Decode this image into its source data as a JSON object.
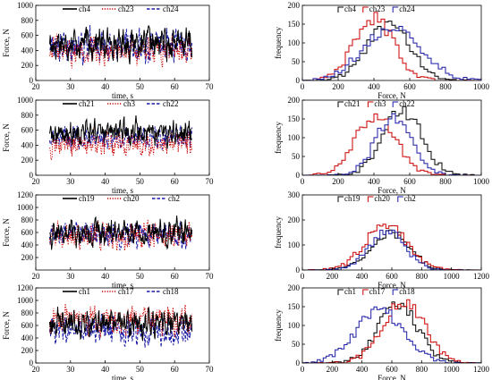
{
  "figure": {
    "colors": {
      "black": "#000000",
      "red": "#cc0000",
      "blue": "#1a1aa6"
    }
  },
  "chart_data": [
    {
      "id": "ts1",
      "type": "line",
      "panel": "time",
      "xlabel": "time, s",
      "ylabel": "Force, N",
      "xlim": [
        20,
        70
      ],
      "ylim": [
        0,
        1000
      ],
      "xticks": [
        "20",
        "30",
        "40",
        "50",
        "60",
        "70"
      ],
      "yticks": [
        "0",
        "200",
        "400",
        "600",
        "800",
        "1000"
      ],
      "x_range": [
        24,
        65
      ],
      "legend_position": "top",
      "series": [
        {
          "name": "ch4",
          "color": "black",
          "style": "solid",
          "mean": 500,
          "amp": 180
        },
        {
          "name": "ch23",
          "color": "red",
          "style": "dotted",
          "mean": 400,
          "amp": 170
        },
        {
          "name": "ch24",
          "color": "blue",
          "style": "dashed",
          "mean": 470,
          "amp": 200
        }
      ]
    },
    {
      "id": "ts2",
      "type": "line",
      "panel": "time",
      "xlabel": "time, s",
      "ylabel": "Force, N",
      "xlim": [
        20,
        70
      ],
      "ylim": [
        0,
        1000
      ],
      "xticks": [
        "20",
        "30",
        "40",
        "50",
        "60",
        "70"
      ],
      "yticks": [
        "0",
        "200",
        "400",
        "600",
        "800",
        "1000"
      ],
      "x_range": [
        24,
        65
      ],
      "legend_position": "top",
      "series": [
        {
          "name": "ch21",
          "color": "black",
          "style": "solid",
          "mean": 560,
          "amp": 150
        },
        {
          "name": "ch3",
          "color": "red",
          "style": "dotted",
          "mean": 420,
          "amp": 150
        },
        {
          "name": "ch22",
          "color": "blue",
          "style": "dashed",
          "mean": 500,
          "amp": 130
        }
      ]
    },
    {
      "id": "ts3",
      "type": "line",
      "panel": "time",
      "xlabel": "time, s",
      "ylabel": "Force, N",
      "xlim": [
        20,
        70
      ],
      "ylim": [
        0,
        1200
      ],
      "xticks": [
        "20",
        "30",
        "40",
        "50",
        "60",
        "70"
      ],
      "yticks": [
        "200",
        "400",
        "600",
        "800",
        "1000",
        "1200"
      ],
      "x_range": [
        24,
        65
      ],
      "legend_position": "top",
      "series": [
        {
          "name": "ch19",
          "color": "black",
          "style": "solid",
          "mean": 590,
          "amp": 200
        },
        {
          "name": "ch20",
          "color": "red",
          "style": "dotted",
          "mean": 560,
          "amp": 190
        },
        {
          "name": "ch2",
          "color": "blue",
          "style": "dashed",
          "mean": 570,
          "amp": 180
        }
      ]
    },
    {
      "id": "ts4",
      "type": "line",
      "panel": "time",
      "xlabel": "time, s",
      "ylabel": "Force, N",
      "xlim": [
        20,
        70
      ],
      "ylim": [
        0,
        1200
      ],
      "xticks": [
        "20",
        "30",
        "40",
        "50",
        "60",
        "70"
      ],
      "yticks": [
        "0",
        "200",
        "400",
        "600",
        "800",
        "1000",
        "1200"
      ],
      "x_range": [
        24,
        65
      ],
      "legend_position": "top",
      "series": [
        {
          "name": "ch1",
          "color": "black",
          "style": "solid",
          "mean": 640,
          "amp": 190
        },
        {
          "name": "ch17",
          "color": "red",
          "style": "dotted",
          "mean": 680,
          "amp": 200
        },
        {
          "name": "ch18",
          "color": "blue",
          "style": "dashed",
          "mean": 520,
          "amp": 200
        }
      ]
    },
    {
      "id": "h1",
      "type": "histogram",
      "panel": "hist",
      "xlabel": "Force, N",
      "ylabel": "frequency",
      "xlim": [
        0,
        1000
      ],
      "ylim": [
        0,
        200
      ],
      "xticks": [
        "0",
        "200",
        "400",
        "600",
        "800",
        "1000"
      ],
      "yticks": [
        "0",
        "50",
        "100",
        "150",
        "200"
      ],
      "bin_width": 20,
      "legend_position": "top",
      "series": [
        {
          "name": "ch4",
          "color": "black",
          "mean": 480,
          "sd": 120,
          "peak": 150
        },
        {
          "name": "ch23",
          "color": "red",
          "mean": 400,
          "sd": 110,
          "peak": 165
        },
        {
          "name": "ch24",
          "color": "blue",
          "mean": 500,
          "sd": 160,
          "peak": 140
        }
      ]
    },
    {
      "id": "h2",
      "type": "histogram",
      "panel": "hist",
      "xlabel": "Force, N",
      "ylabel": "frequency",
      "xlim": [
        0,
        1000
      ],
      "ylim": [
        0,
        200
      ],
      "xticks": [
        "0",
        "200",
        "400",
        "600",
        "800",
        "1000"
      ],
      "yticks": [
        "0",
        "50",
        "100",
        "150",
        "200"
      ],
      "bin_width": 20,
      "legend_position": "top",
      "series": [
        {
          "name": "ch21",
          "color": "black",
          "mean": 560,
          "sd": 110,
          "peak": 170
        },
        {
          "name": "ch3",
          "color": "red",
          "mean": 410,
          "sd": 110,
          "peak": 160
        },
        {
          "name": "ch22",
          "color": "blue",
          "mean": 510,
          "sd": 100,
          "peak": 155
        }
      ]
    },
    {
      "id": "h3",
      "type": "histogram",
      "panel": "hist",
      "xlabel": "Force, N",
      "ylabel": "frequency",
      "xlim": [
        0,
        1200
      ],
      "ylim": [
        0,
        300
      ],
      "xticks": [
        "0",
        "200",
        "400",
        "600",
        "800",
        "1000",
        "1200"
      ],
      "yticks": [
        "0",
        "100",
        "200",
        "300"
      ],
      "bin_width": 20,
      "legend_position": "top",
      "series": [
        {
          "name": "ch19",
          "color": "black",
          "mean": 590,
          "sd": 130,
          "peak": 150
        },
        {
          "name": "ch20",
          "color": "red",
          "mean": 560,
          "sd": 140,
          "peak": 180
        },
        {
          "name": "ch2",
          "color": "blue",
          "mean": 570,
          "sd": 120,
          "peak": 155
        }
      ]
    },
    {
      "id": "h4",
      "type": "histogram",
      "panel": "hist",
      "xlabel": "Force, N",
      "ylabel": "frequency",
      "xlim": [
        0,
        1200
      ],
      "ylim": [
        0,
        200
      ],
      "xticks": [
        "0",
        "200",
        "400",
        "600",
        "800",
        "1000",
        "1200"
      ],
      "yticks": [
        "0",
        "50",
        "100",
        "150",
        "200"
      ],
      "bin_width": 20,
      "legend_position": "top",
      "series": [
        {
          "name": "ch1",
          "color": "black",
          "mean": 640,
          "sd": 130,
          "peak": 160
        },
        {
          "name": "ch17",
          "color": "red",
          "mean": 680,
          "sd": 140,
          "peak": 165
        },
        {
          "name": "ch18",
          "color": "blue",
          "mean": 520,
          "sd": 160,
          "peak": 140
        }
      ]
    }
  ]
}
